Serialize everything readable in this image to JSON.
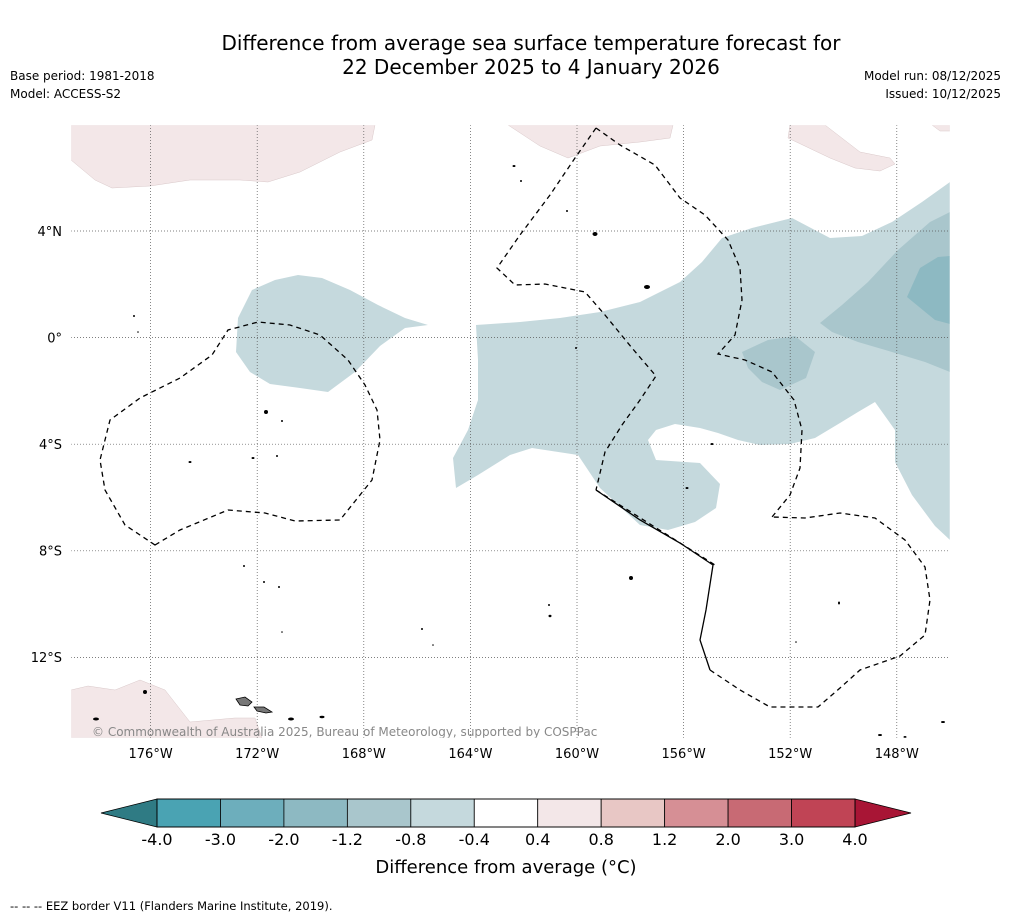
{
  "title": {
    "line1": "Difference from average sea surface temperature forecast for",
    "line2": "22 December 2025 to 4 January 2026"
  },
  "meta": {
    "base_period": "Base period: 1981-2018",
    "model": "Model: ACCESS-S2",
    "model_run": "Model run: 08/12/2025",
    "issued": "Issued: 10/12/2025"
  },
  "map": {
    "longitude_ticks": [
      "176°W",
      "172°W",
      "168°W",
      "164°W",
      "160°W",
      "156°W",
      "152°W",
      "148°W"
    ],
    "latitude_ticks": [
      "4°N",
      "0°",
      "4°S",
      "8°S",
      "12°S"
    ],
    "copyright": "© Commonwealth of Australia 2025, Bureau of Meteorology, supported by COSPPac",
    "lon_range": [
      -179,
      -146
    ],
    "lat_range": [
      -15,
      8
    ]
  },
  "colorbar": {
    "title": "Difference from average (°C)",
    "tick_labels": [
      "-4.0",
      "-3.0",
      "-2.0",
      "-1.2",
      "-0.8",
      "-0.4",
      "0.4",
      "0.8",
      "1.2",
      "2.0",
      "3.0",
      "4.0"
    ],
    "colors": {
      "under": "#2f7b84",
      "bins": [
        "#4aa3b3",
        "#6daebc",
        "#8db9c2",
        "#a9c6cc",
        "#c5d9dd",
        "#ffffff",
        "#f3e7e8",
        "#e8c7c5",
        "#d68f95",
        "#c86a74",
        "#c04455"
      ],
      "over": "#a81535"
    }
  },
  "footnote": "--  --  -- EEZ border V11 (Flanders Marine Institute, 2019)."
}
